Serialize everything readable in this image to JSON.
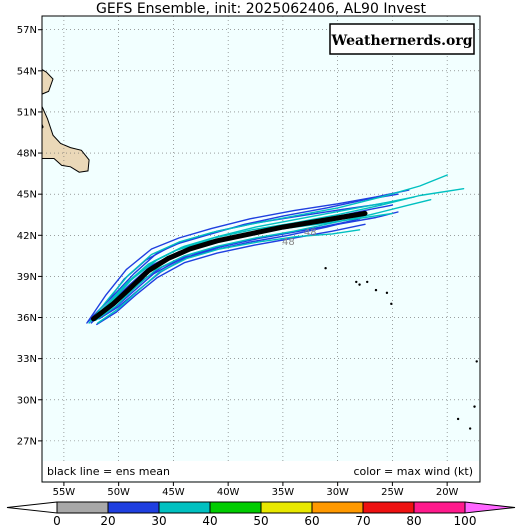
{
  "title": "GEFS Ensemble, init: 2025062406, AL90 Invest",
  "brand": "Weathernerds.org",
  "notes": {
    "left": "black line = ens mean",
    "right": "color = max wind (kt)"
  },
  "map": {
    "lon_range": [
      -57,
      -17
    ],
    "lat_range": [
      24,
      58
    ],
    "lat_ticks": [
      {
        "value": 57,
        "label": "57N"
      },
      {
        "value": 54,
        "label": "54N"
      },
      {
        "value": 51,
        "label": "51N"
      },
      {
        "value": 48,
        "label": "48N"
      },
      {
        "value": 45,
        "label": "45N"
      },
      {
        "value": 42,
        "label": "42N"
      },
      {
        "value": 39,
        "label": "39N"
      },
      {
        "value": 36,
        "label": "36N"
      },
      {
        "value": 33,
        "label": "33N"
      },
      {
        "value": 30,
        "label": "30N"
      },
      {
        "value": 27,
        "label": "27N"
      }
    ],
    "lon_ticks": [
      {
        "value": -55,
        "label": "55W"
      },
      {
        "value": -50,
        "label": "50W"
      },
      {
        "value": -45,
        "label": "45W"
      },
      {
        "value": -40,
        "label": "40W"
      },
      {
        "value": -35,
        "label": "35W"
      },
      {
        "value": -30,
        "label": "30W"
      },
      {
        "value": -25,
        "label": "25W"
      },
      {
        "value": -20,
        "label": "20W"
      }
    ],
    "colors": {
      "ocean": "#f2ffff",
      "land": "#ead8b8",
      "grid": "#666666",
      "mean_track": "#000000"
    },
    "mean_track": [
      [
        -52.3,
        35.9
      ],
      [
        -50.5,
        37.0
      ],
      [
        -49.0,
        38.1
      ],
      [
        -47.3,
        39.4
      ],
      [
        -45.5,
        40.3
      ],
      [
        -43.5,
        41.0
      ],
      [
        -41.0,
        41.6
      ],
      [
        -38.0,
        42.1
      ],
      [
        -35.0,
        42.6
      ],
      [
        -32.0,
        43.0
      ],
      [
        -29.0,
        43.4
      ],
      [
        -27.5,
        43.6
      ]
    ],
    "members": [
      {
        "color": "#1f3fe0",
        "points": [
          [
            -52.8,
            35.7
          ],
          [
            -51.0,
            37.2
          ],
          [
            -49.5,
            38.8
          ],
          [
            -47.5,
            40.2
          ],
          [
            -45.0,
            41.3
          ],
          [
            -42.0,
            42.0
          ],
          [
            -38.5,
            42.8
          ],
          [
            -35.0,
            43.4
          ],
          [
            -31.0,
            44.0
          ],
          [
            -27.5,
            44.6
          ],
          [
            -24.5,
            45.0
          ]
        ]
      },
      {
        "color": "#1f3fe0",
        "points": [
          [
            -52.5,
            35.6
          ],
          [
            -50.8,
            37.0
          ],
          [
            -49.0,
            38.4
          ],
          [
            -47.0,
            39.8
          ],
          [
            -44.5,
            40.8
          ],
          [
            -41.5,
            41.4
          ],
          [
            -38.0,
            42.0
          ],
          [
            -34.5,
            42.6
          ],
          [
            -30.5,
            43.3
          ],
          [
            -27.0,
            43.9
          ],
          [
            -25.0,
            44.2
          ]
        ]
      },
      {
        "color": "#1f3fe0",
        "points": [
          [
            -52.2,
            35.8
          ],
          [
            -50.5,
            36.6
          ],
          [
            -48.8,
            37.8
          ],
          [
            -46.8,
            39.2
          ],
          [
            -44.5,
            40.2
          ],
          [
            -41.5,
            40.9
          ],
          [
            -38.0,
            41.5
          ],
          [
            -34.5,
            42.0
          ],
          [
            -31.0,
            42.6
          ],
          [
            -28.0,
            43.2
          ]
        ]
      },
      {
        "color": "#1f3fe0",
        "points": [
          [
            -52.6,
            35.9
          ],
          [
            -50.6,
            37.5
          ],
          [
            -48.6,
            39.2
          ],
          [
            -46.5,
            40.7
          ],
          [
            -44.0,
            41.6
          ],
          [
            -41.0,
            42.3
          ],
          [
            -37.5,
            42.9
          ],
          [
            -33.5,
            43.4
          ],
          [
            -29.5,
            43.9
          ],
          [
            -26.0,
            44.3
          ]
        ]
      },
      {
        "color": "#1f3fe0",
        "points": [
          [
            -52.0,
            35.5
          ],
          [
            -50.2,
            36.4
          ],
          [
            -48.5,
            37.6
          ],
          [
            -46.5,
            38.9
          ],
          [
            -44.0,
            40.0
          ],
          [
            -41.0,
            40.7
          ],
          [
            -37.5,
            41.3
          ],
          [
            -34.0,
            41.8
          ],
          [
            -30.5,
            42.3
          ],
          [
            -27.5,
            42.8
          ]
        ]
      },
      {
        "color": "#1f3fe0",
        "points": [
          [
            -52.9,
            35.6
          ],
          [
            -51.2,
            37.6
          ],
          [
            -49.3,
            39.5
          ],
          [
            -47.0,
            41.0
          ],
          [
            -44.5,
            41.8
          ],
          [
            -41.5,
            42.5
          ],
          [
            -38.0,
            43.2
          ],
          [
            -34.0,
            43.8
          ],
          [
            -30.0,
            44.3
          ],
          [
            -26.5,
            44.8
          ],
          [
            -23.5,
            45.3
          ]
        ]
      },
      {
        "color": "#1f3fe0",
        "points": [
          [
            -52.4,
            35.7
          ],
          [
            -50.4,
            36.9
          ],
          [
            -48.4,
            38.4
          ],
          [
            -46.0,
            39.7
          ],
          [
            -43.5,
            40.6
          ],
          [
            -40.5,
            41.2
          ],
          [
            -37.0,
            41.8
          ],
          [
            -33.5,
            42.3
          ],
          [
            -30.0,
            42.8
          ],
          [
            -26.5,
            43.3
          ],
          [
            -24.5,
            43.7
          ]
        ]
      },
      {
        "color": "#1f3fe0",
        "points": [
          [
            -51.8,
            35.9
          ],
          [
            -50.0,
            36.8
          ],
          [
            -48.2,
            38.0
          ],
          [
            -46.2,
            39.3
          ],
          [
            -43.8,
            40.4
          ],
          [
            -41.0,
            41.1
          ],
          [
            -37.8,
            41.7
          ],
          [
            -34.5,
            42.2
          ],
          [
            -31.5,
            42.6
          ],
          [
            -29.0,
            43.0
          ]
        ]
      },
      {
        "color": "#00c0c0",
        "points": [
          [
            -52.4,
            35.8
          ],
          [
            -50.6,
            37.2
          ],
          [
            -48.9,
            38.7
          ],
          [
            -46.8,
            40.1
          ],
          [
            -44.3,
            41.1
          ],
          [
            -41.3,
            41.8
          ],
          [
            -37.8,
            42.4
          ],
          [
            -34.0,
            42.9
          ],
          [
            -30.0,
            43.5
          ],
          [
            -26.0,
            44.2
          ],
          [
            -22.5,
            44.9
          ],
          [
            -18.5,
            45.4
          ]
        ]
      },
      {
        "color": "#00c0c0",
        "points": [
          [
            -52.6,
            35.7
          ],
          [
            -50.9,
            37.4
          ],
          [
            -49.1,
            39.1
          ],
          [
            -47.0,
            40.6
          ],
          [
            -44.5,
            41.5
          ],
          [
            -41.5,
            42.2
          ],
          [
            -38.0,
            42.8
          ],
          [
            -34.0,
            43.4
          ],
          [
            -30.0,
            44.0
          ],
          [
            -26.0,
            44.8
          ],
          [
            -22.5,
            45.6
          ],
          [
            -20.0,
            46.4
          ]
        ]
      },
      {
        "color": "#00c0c0",
        "points": [
          [
            -52.1,
            35.8
          ],
          [
            -50.3,
            36.8
          ],
          [
            -48.6,
            38.1
          ],
          [
            -46.6,
            39.5
          ],
          [
            -44.0,
            40.5
          ],
          [
            -41.0,
            41.2
          ],
          [
            -37.5,
            41.8
          ],
          [
            -34.0,
            42.3
          ],
          [
            -30.5,
            42.9
          ],
          [
            -27.0,
            43.5
          ],
          [
            -23.5,
            44.2
          ],
          [
            -21.5,
            44.6
          ]
        ]
      },
      {
        "color": "#00c0c0",
        "points": [
          [
            -52.3,
            35.9
          ],
          [
            -50.6,
            37.3
          ],
          [
            -48.8,
            38.8
          ],
          [
            -46.5,
            40.2
          ],
          [
            -44.0,
            41.2
          ],
          [
            -41.0,
            41.9
          ],
          [
            -37.5,
            42.6
          ],
          [
            -33.5,
            43.2
          ],
          [
            -29.5,
            43.8
          ],
          [
            -25.5,
            44.4
          ],
          [
            -23.0,
            44.8
          ]
        ]
      },
      {
        "color": "#00c0c0",
        "points": [
          [
            -51.9,
            35.6
          ],
          [
            -50.1,
            36.6
          ],
          [
            -48.3,
            37.9
          ],
          [
            -46.3,
            39.3
          ],
          [
            -43.8,
            40.3
          ],
          [
            -40.8,
            41.0
          ],
          [
            -37.3,
            41.5
          ],
          [
            -33.8,
            41.9
          ],
          [
            -30.5,
            42.1
          ],
          [
            -28.0,
            42.4
          ]
        ]
      },
      {
        "color": "#00c0c0",
        "points": [
          [
            -52.7,
            35.6
          ],
          [
            -51.0,
            37.0
          ],
          [
            -49.3,
            38.5
          ],
          [
            -47.3,
            39.9
          ],
          [
            -44.8,
            40.9
          ],
          [
            -41.8,
            41.6
          ],
          [
            -38.3,
            42.1
          ],
          [
            -34.8,
            42.5
          ],
          [
            -31.0,
            42.9
          ],
          [
            -27.5,
            43.3
          ],
          [
            -25.0,
            43.6
          ]
        ]
      }
    ],
    "land_shapes": [
      [
        [
          -57,
          51.4
        ],
        [
          -56.5,
          50.5
        ],
        [
          -56.0,
          49.3
        ],
        [
          -55.3,
          48.7
        ],
        [
          -54.4,
          48.4
        ],
        [
          -53.4,
          48.2
        ],
        [
          -52.7,
          47.5
        ],
        [
          -52.8,
          46.7
        ],
        [
          -53.6,
          46.6
        ],
        [
          -54.4,
          47.0
        ],
        [
          -55.2,
          47.1
        ],
        [
          -55.9,
          47.6
        ],
        [
          -57,
          47.6
        ]
      ],
      [
        [
          -57,
          49.8
        ],
        [
          -56.9,
          49.9
        ],
        [
          -57,
          50.1
        ]
      ],
      [
        [
          -57,
          52.3
        ],
        [
          -56.4,
          52.5
        ],
        [
          -56.0,
          53.4
        ],
        [
          -56.6,
          53.9
        ],
        [
          -57,
          54.1
        ]
      ]
    ],
    "islands": [
      [
        -31.1,
        39.6
      ],
      [
        -28.3,
        38.6
      ],
      [
        -28.0,
        38.4
      ],
      [
        -27.3,
        38.6
      ],
      [
        -26.5,
        38.0
      ],
      [
        -25.5,
        37.8
      ],
      [
        -25.1,
        37.0
      ],
      [
        -19.0,
        28.6
      ],
      [
        -17.9,
        27.9
      ],
      [
        -17.5,
        29.5
      ],
      [
        -17.3,
        32.8
      ]
    ],
    "hour_labels": [
      {
        "text": "48",
        "lon": -34.5,
        "lat": 41.3
      },
      {
        "text": "48",
        "lon": -32.5,
        "lat": 42.0
      }
    ]
  },
  "colorbar": {
    "ticks": [
      "0",
      "20",
      "30",
      "40",
      "50",
      "60",
      "70",
      "80",
      "100"
    ],
    "colors": [
      "#a8a8a8",
      "#1f3fe0",
      "#00c0c0",
      "#00cc00",
      "#e8e800",
      "#ff9900",
      "#ee1111",
      "#ff1a8c"
    ],
    "arrow_left_color": "#ffffff",
    "arrow_right_color": "#ff66ff"
  }
}
